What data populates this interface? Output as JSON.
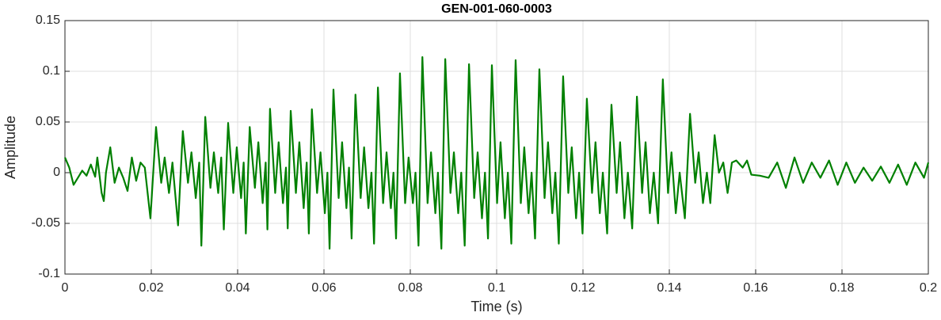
{
  "chart_data": {
    "type": "line",
    "title": "GEN-001-060-0003",
    "xlabel": "Time (s)",
    "ylabel": "Amplitude",
    "xlim": [
      0,
      0.2
    ],
    "ylim": [
      -0.1,
      0.15
    ],
    "xticks": [
      0,
      0.02,
      0.04,
      0.06,
      0.08,
      0.1,
      0.12,
      0.14,
      0.16,
      0.18,
      0.2
    ],
    "yticks": [
      -0.1,
      -0.05,
      0,
      0.05,
      0.1,
      0.15
    ],
    "grid": true,
    "series": [
      {
        "name": "Amplitude",
        "color": "#008000",
        "x": [
          0,
          0.001,
          0.002,
          0.003,
          0.004,
          0.005,
          0.006,
          0.007,
          0.0075,
          0.0085,
          0.009,
          0.0095,
          0.0105,
          0.0115,
          0.0125,
          0.0135,
          0.0145,
          0.0155,
          0.0165,
          0.0175,
          0.0185,
          0.0198,
          0.0211,
          0.0223,
          0.0231,
          0.0241,
          0.0249,
          0.0262,
          0.0273,
          0.0285,
          0.0293,
          0.0303,
          0.0311,
          0.0316,
          0.0325,
          0.0337,
          0.0345,
          0.0355,
          0.0362,
          0.0368,
          0.0378,
          0.039,
          0.0398,
          0.0408,
          0.0414,
          0.0419,
          0.0428,
          0.044,
          0.0448,
          0.0458,
          0.0465,
          0.0469,
          0.0475,
          0.0487,
          0.0495,
          0.0505,
          0.0512,
          0.0516,
          0.0523,
          0.0535,
          0.0543,
          0.0553,
          0.056,
          0.0565,
          0.0572,
          0.0584,
          0.0592,
          0.0602,
          0.0608,
          0.0613,
          0.0622,
          0.0634,
          0.0642,
          0.0652,
          0.0658,
          0.0664,
          0.0673,
          0.0685,
          0.0693,
          0.0703,
          0.071,
          0.0716,
          0.0725,
          0.0737,
          0.0745,
          0.0755,
          0.0761,
          0.0767,
          0.0776,
          0.0788,
          0.0796,
          0.0806,
          0.0812,
          0.0819,
          0.0828,
          0.084,
          0.0848,
          0.0858,
          0.0864,
          0.0872,
          0.0881,
          0.0893,
          0.0901,
          0.0911,
          0.0918,
          0.0926,
          0.0936,
          0.0948,
          0.0956,
          0.0966,
          0.0973,
          0.098,
          0.0989,
          0.1001,
          0.1009,
          0.1019,
          0.1026,
          0.1034,
          0.1044,
          0.1056,
          0.1064,
          0.1074,
          0.1081,
          0.1089,
          0.1099,
          0.1111,
          0.1119,
          0.1129,
          0.1136,
          0.1144,
          0.1154,
          0.1166,
          0.1174,
          0.1184,
          0.1191,
          0.1199,
          0.1209,
          0.1221,
          0.1229,
          0.1239,
          0.1246,
          0.1256,
          0.1266,
          0.1278,
          0.1286,
          0.1296,
          0.1304,
          0.1314,
          0.1325,
          0.1337,
          0.1345,
          0.1355,
          0.1364,
          0.1374,
          0.1385,
          0.1397,
          0.1405,
          0.1415,
          0.1424,
          0.1436,
          0.1448,
          0.146,
          0.1468,
          0.1478,
          0.1487,
          0.1495,
          0.1505,
          0.1515,
          0.1525,
          0.1535,
          0.1545,
          0.1555,
          0.157,
          0.158,
          0.159,
          0.161,
          0.163,
          0.165,
          0.167,
          0.169,
          0.171,
          0.173,
          0.175,
          0.177,
          0.179,
          0.181,
          0.183,
          0.185,
          0.187,
          0.189,
          0.191,
          0.193,
          0.195,
          0.197,
          0.199,
          0.2
        ],
        "values": [
          0.015,
          0.005,
          -0.012,
          -0.005,
          0.002,
          -0.003,
          0.008,
          -0.004,
          0.015,
          -0.02,
          -0.028,
          0.0,
          0.025,
          -0.01,
          0.005,
          -0.005,
          -0.018,
          0.015,
          -0.008,
          0.01,
          0.005,
          -0.045,
          0.045,
          -0.01,
          0.015,
          -0.02,
          0.01,
          -0.052,
          0.041,
          -0.01,
          0.02,
          -0.025,
          0.01,
          -0.072,
          0.055,
          -0.015,
          0.02,
          -0.02,
          0.015,
          -0.056,
          0.049,
          -0.02,
          0.025,
          -0.025,
          0.01,
          -0.06,
          0.045,
          -0.015,
          0.03,
          -0.03,
          0.01,
          -0.056,
          0.063,
          -0.02,
          0.03,
          -0.03,
          0.005,
          -0.055,
          0.061,
          -0.02,
          0.03,
          -0.035,
          0.01,
          -0.06,
          0.0625,
          -0.02,
          0.02,
          -0.04,
          0.0,
          -0.075,
          0.082,
          -0.025,
          0.03,
          -0.035,
          0.005,
          -0.065,
          0.077,
          -0.025,
          0.025,
          -0.035,
          0.0,
          -0.07,
          0.084,
          -0.03,
          0.02,
          -0.035,
          0.0,
          -0.065,
          0.098,
          -0.03,
          0.015,
          -0.03,
          0.0,
          -0.072,
          0.114,
          -0.03,
          0.02,
          -0.04,
          0.0,
          -0.075,
          0.112,
          -0.02,
          0.02,
          -0.04,
          0.0,
          -0.072,
          0.107,
          -0.025,
          0.02,
          -0.045,
          0.0,
          -0.065,
          0.106,
          -0.03,
          0.03,
          -0.045,
          0.0,
          -0.07,
          0.111,
          -0.03,
          0.025,
          -0.04,
          0.0,
          -0.065,
          0.102,
          -0.025,
          0.03,
          -0.04,
          0.0,
          -0.07,
          0.095,
          -0.02,
          0.025,
          -0.045,
          0.0,
          -0.06,
          0.073,
          -0.02,
          0.03,
          -0.04,
          0.0,
          -0.06,
          0.067,
          -0.02,
          0.03,
          -0.045,
          0.0,
          -0.055,
          0.075,
          -0.02,
          0.03,
          -0.04,
          0.0,
          -0.05,
          0.092,
          -0.02,
          0.02,
          -0.04,
          0.0,
          -0.045,
          0.058,
          -0.01,
          0.02,
          -0.03,
          0.0,
          -0.03,
          0.037,
          0.0,
          0.01,
          -0.02,
          0.01,
          0.012,
          0.005,
          0.012,
          -0.002,
          -0.003,
          -0.005,
          0.01,
          -0.015,
          0.015,
          -0.01,
          0.01,
          -0.005,
          0.012,
          -0.012,
          0.01,
          -0.01,
          0.005,
          -0.008,
          0.006,
          -0.01,
          0.008,
          -0.012,
          0.01,
          -0.005,
          0.01
        ]
      }
    ]
  }
}
